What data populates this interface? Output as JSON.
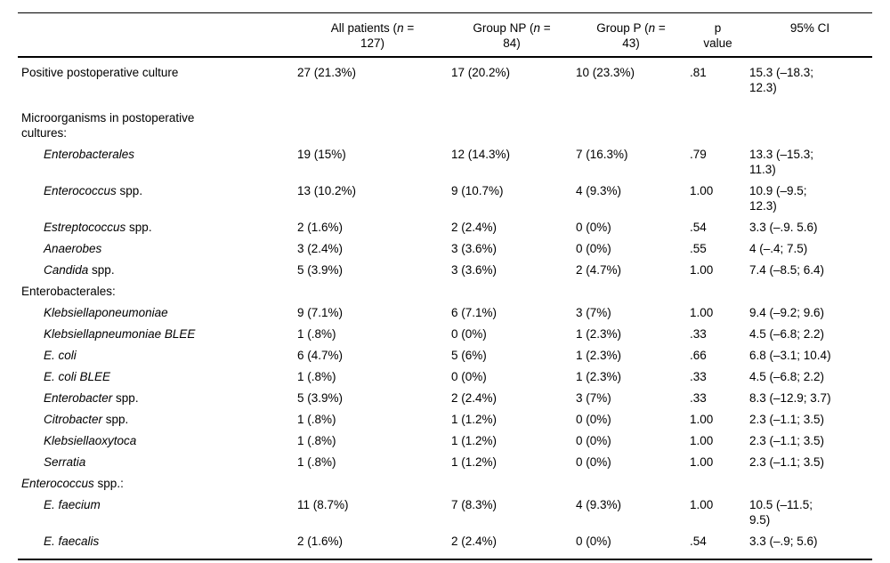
{
  "table": {
    "columns": [
      {
        "pre": "",
        "n": "",
        "post": ""
      },
      {
        "pre": "All patients (",
        "n": "n",
        "post": " =\n127)"
      },
      {
        "pre": "Group NP (",
        "n": "n",
        "post": " =\n84)"
      },
      {
        "pre": "Group P (",
        "n": "n",
        "post": " =\n43)"
      },
      {
        "pre": "p\nvalue",
        "n": "",
        "post": ""
      },
      {
        "pre": "95% CI",
        "n": "",
        "post": ""
      }
    ],
    "rows": [
      {
        "indent": false,
        "gap_after": true,
        "label_i": "",
        "label_r": "Positive postoperative culture",
        "all": "27 (21.3%)",
        "np": "17 (20.2%)",
        "p": "10 (23.3%)",
        "pval": ".81",
        "ci": "15.3 (–18.3;\n12.3)"
      },
      {
        "indent": false,
        "gap_after": false,
        "label_i": "",
        "label_r": "Microorganisms in postoperative\ncultures:",
        "all": "",
        "np": "",
        "p": "",
        "pval": "",
        "ci": ""
      },
      {
        "indent": true,
        "gap_after": false,
        "label_i": "Enterobacterales",
        "label_r": "",
        "all": "19 (15%)",
        "np": "12 (14.3%)",
        "p": "7 (16.3%)",
        "pval": ".79",
        "ci": "13.3 (–15.3;\n11.3)"
      },
      {
        "indent": true,
        "gap_after": false,
        "label_i": "Enterococcus",
        "label_r": " spp.",
        "all": "13 (10.2%)",
        "np": "9 (10.7%)",
        "p": "4 (9.3%)",
        "pval": "1.00",
        "ci": "10.9 (–9.5;\n12.3)"
      },
      {
        "indent": true,
        "gap_after": false,
        "label_i": "Estreptococcus",
        "label_r": " spp.",
        "all": "2 (1.6%)",
        "np": "2 (2.4%)",
        "p": "0 (0%)",
        "pval": ".54",
        "ci": "3.3 (–.9. 5.6)"
      },
      {
        "indent": true,
        "gap_after": false,
        "label_i": "Anaerobes",
        "label_r": "",
        "all": "3 (2.4%)",
        "np": "3 (3.6%)",
        "p": "0 (0%)",
        "pval": ".55",
        "ci": "4 (–.4; 7.5)"
      },
      {
        "indent": true,
        "gap_after": false,
        "label_i": "Candida",
        "label_r": " spp.",
        "all": "5 (3.9%)",
        "np": "3 (3.6%)",
        "p": "2 (4.7%)",
        "pval": "1.00",
        "ci": "7.4 (–8.5; 6.4)"
      },
      {
        "indent": false,
        "gap_after": false,
        "label_i": "",
        "label_r": "Enterobacterales:",
        "all": "",
        "np": "",
        "p": "",
        "pval": "",
        "ci": ""
      },
      {
        "indent": true,
        "gap_after": false,
        "label_i": "Klebsiellaponeumoniae",
        "label_r": "",
        "all": "9 (7.1%)",
        "np": "6 (7.1%)",
        "p": "3 (7%)",
        "pval": "1.00",
        "ci": "9.4 (–9.2; 9.6)"
      },
      {
        "indent": true,
        "gap_after": false,
        "label_i": "Klebsiellapneumoniae BLEE",
        "label_r": "",
        "all": "1 (.8%)",
        "np": "0 (0%)",
        "p": "1 (2.3%)",
        "pval": ".33",
        "ci": "4.5 (–6.8; 2.2)"
      },
      {
        "indent": true,
        "gap_after": false,
        "label_i": "E. coli",
        "label_r": "",
        "all": "6 (4.7%)",
        "np": "5 (6%)",
        "p": "1 (2.3%)",
        "pval": ".66",
        "ci": "6.8 (–3.1; 10.4)"
      },
      {
        "indent": true,
        "gap_after": false,
        "label_i": "E. coli BLEE",
        "label_r": "",
        "all": "1 (.8%)",
        "np": "0 (0%)",
        "p": "1 (2.3%)",
        "pval": ".33",
        "ci": "4.5 (–6.8; 2.2)"
      },
      {
        "indent": true,
        "gap_after": false,
        "label_i": "Enterobacter",
        "label_r": " spp.",
        "all": "5 (3.9%)",
        "np": "2 (2.4%)",
        "p": "3 (7%)",
        "pval": ".33",
        "ci": "8.3 (–12.9; 3.7)"
      },
      {
        "indent": true,
        "gap_after": false,
        "label_i": "Citrobacter",
        "label_r": " spp.",
        "all": "1 (.8%)",
        "np": "1 (1.2%)",
        "p": "0 (0%)",
        "pval": "1.00",
        "ci": "2.3 (–1.1; 3.5)"
      },
      {
        "indent": true,
        "gap_after": false,
        "label_i": "Klebsiellaoxytoca",
        "label_r": "",
        "all": "1 (.8%)",
        "np": "1 (1.2%)",
        "p": "0 (0%)",
        "pval": "1.00",
        "ci": "2.3 (–1.1; 3.5)"
      },
      {
        "indent": true,
        "gap_after": false,
        "label_i": "Serratia",
        "label_r": "",
        "all": "1 (.8%)",
        "np": "1 (1.2%)",
        "p": "0 (0%)",
        "pval": "1.00",
        "ci": "2.3 (–1.1; 3.5)"
      },
      {
        "indent": false,
        "gap_after": false,
        "label_i": "Enterococcus",
        "label_r": " spp.:",
        "all": "",
        "np": "",
        "p": "",
        "pval": "",
        "ci": ""
      },
      {
        "indent": true,
        "gap_after": false,
        "label_i": "E. faecium",
        "label_r": "",
        "all": "11 (8.7%)",
        "np": "7 (8.3%)",
        "p": "4 (9.3%)",
        "pval": "1.00",
        "ci": "10.5 (–11.5;\n9.5)"
      },
      {
        "indent": true,
        "gap_after": false,
        "label_i": "E. faecalis",
        "label_r": "",
        "all": "2 (1.6%)",
        "np": "2 (2.4%)",
        "p": "0 (0%)",
        "pval": ".54",
        "ci": "3.3 (–.9; 5.6)"
      }
    ]
  }
}
